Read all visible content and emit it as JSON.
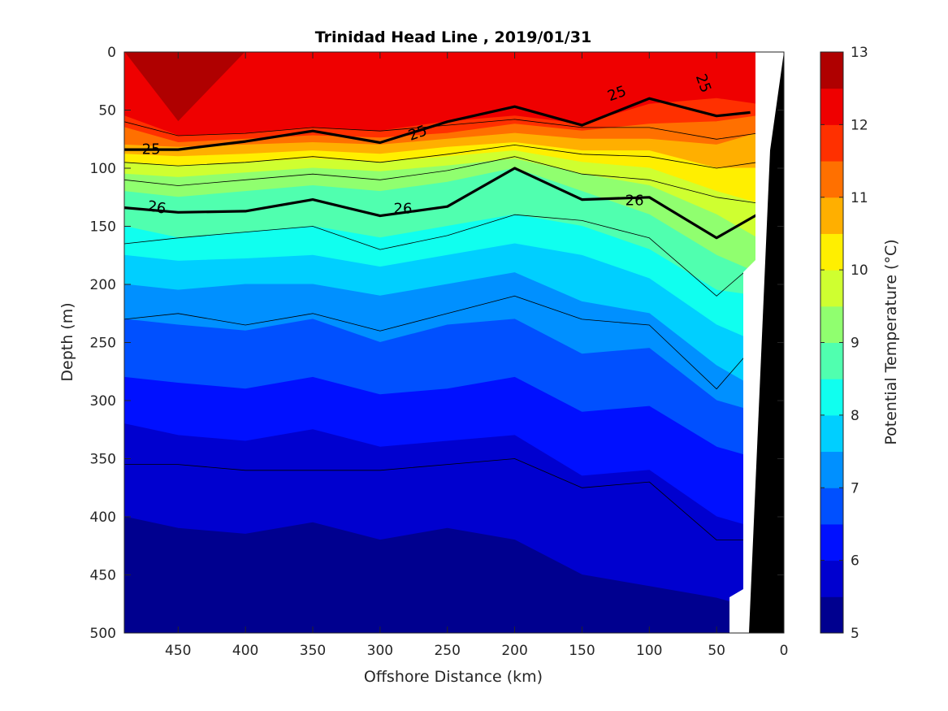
{
  "chart_data": {
    "type": "contour",
    "title": "Trinidad Head Line , 2019/01/31",
    "xlabel": "Offshore Distance (km)",
    "ylabel": "Depth (m)",
    "xlim": [
      490,
      0
    ],
    "ylim": [
      0,
      500
    ],
    "x_reversed": true,
    "y_reversed": true,
    "x_ticks": [
      450,
      400,
      350,
      300,
      250,
      200,
      150,
      100,
      50,
      0
    ],
    "y_ticks": [
      0,
      50,
      100,
      150,
      200,
      250,
      300,
      350,
      400,
      450,
      500
    ],
    "x_tick_labels": [
      "450",
      "400",
      "350",
      "300",
      "250",
      "200",
      "150",
      "100",
      "50",
      "0"
    ],
    "y_tick_labels": [
      "0",
      "50",
      "100",
      "150",
      "200",
      "250",
      "300",
      "350",
      "400",
      "450",
      "500"
    ],
    "colorbar": {
      "label": "Potential Temperature (°C)",
      "range": [
        5,
        13
      ],
      "ticks": [
        5,
        6,
        7,
        8,
        9,
        10,
        11,
        12,
        13
      ],
      "tick_labels": [
        "5",
        "6",
        "7",
        "8",
        "9",
        "10",
        "11",
        "12",
        "13"
      ],
      "levels": [
        5,
        5.5,
        6,
        6.5,
        7,
        7.5,
        8,
        8.5,
        9,
        9.5,
        10,
        10.5,
        11,
        11.5,
        12,
        12.5,
        13
      ],
      "colors": [
        "#00008f",
        "#0000cf",
        "#0010ff",
        "#0050ff",
        "#0090ff",
        "#00cfff",
        "#10ffef",
        "#50ffaf",
        "#90ff6f",
        "#cfff30",
        "#ffef00",
        "#ffaf00",
        "#ff7000",
        "#ff3000",
        "#ef0000",
        "#af0000"
      ]
    },
    "temperature_isotherm_depths": {
      "x_km": [
        490,
        450,
        400,
        350,
        300,
        250,
        200,
        150,
        100,
        50,
        20
      ],
      "t12_5": [
        0,
        60,
        0,
        0,
        0,
        0,
        0,
        0,
        0,
        0,
        0
      ],
      "t12": [
        55,
        72,
        70,
        65,
        68,
        60,
        55,
        62,
        45,
        40,
        45
      ],
      "t11_5": [
        65,
        78,
        75,
        72,
        74,
        70,
        62,
        68,
        62,
        60,
        55
      ],
      "t11": [
        80,
        82,
        80,
        78,
        80,
        75,
        70,
        75,
        75,
        80,
        70
      ],
      "t10_5": [
        88,
        90,
        88,
        85,
        88,
        82,
        78,
        85,
        85,
        100,
        100
      ],
      "t10": [
        95,
        98,
        95,
        92,
        95,
        90,
        85,
        95,
        100,
        120,
        130
      ],
      "t9_5": [
        105,
        108,
        104,
        100,
        103,
        98,
        92,
        105,
        115,
        140,
        160
      ],
      "t9": [
        120,
        125,
        120,
        115,
        120,
        112,
        100,
        120,
        140,
        175,
        190
      ],
      "t8_5": [
        150,
        160,
        155,
        150,
        160,
        150,
        140,
        150,
        170,
        205,
        210
      ],
      "t8": [
        175,
        180,
        178,
        175,
        185,
        175,
        165,
        175,
        195,
        235,
        250
      ],
      "t7_5": [
        200,
        205,
        200,
        200,
        210,
        200,
        190,
        215,
        225,
        270,
        290
      ],
      "t7": [
        230,
        235,
        240,
        230,
        250,
        235,
        230,
        260,
        255,
        300,
        310
      ],
      "t6_5": [
        280,
        285,
        290,
        280,
        295,
        290,
        280,
        310,
        305,
        340,
        350
      ],
      "t6": [
        320,
        330,
        335,
        325,
        340,
        335,
        330,
        365,
        360,
        400,
        410
      ],
      "t5_5": [
        400,
        410,
        415,
        405,
        420,
        410,
        420,
        450,
        460,
        470,
        480
      ]
    },
    "density_contours": [
      {
        "value": 25,
        "label": "25",
        "bold": true,
        "x_km": [
          490,
          450,
          400,
          350,
          300,
          250,
          200,
          150,
          100,
          50,
          25
        ],
        "depth_m": [
          84,
          84,
          77,
          68,
          78,
          60,
          47,
          63,
          40,
          55,
          52
        ]
      },
      {
        "value": 26,
        "label": "26",
        "bold": true,
        "x_km": [
          490,
          450,
          400,
          350,
          300,
          250,
          200,
          150,
          100,
          50,
          20
        ],
        "depth_m": [
          134,
          138,
          137,
          127,
          141,
          133,
          100,
          127,
          125,
          160,
          140
        ]
      }
    ],
    "thin_density_contours_depth_m": [
      [
        60,
        72,
        70,
        65,
        68,
        63,
        58,
        65,
        65,
        75,
        70
      ],
      [
        95,
        98,
        95,
        90,
        95,
        88,
        80,
        88,
        90,
        100,
        95
      ],
      [
        110,
        115,
        110,
        105,
        110,
        102,
        90,
        105,
        110,
        125,
        130
      ],
      [
        165,
        160,
        155,
        150,
        170,
        158,
        140,
        145,
        160,
        210,
        180
      ],
      [
        230,
        225,
        235,
        225,
        240,
        225,
        210,
        230,
        235,
        290,
        250
      ],
      [
        355,
        355,
        360,
        360,
        360,
        355,
        350,
        375,
        370,
        420,
        420
      ]
    ],
    "contour_labels": [
      {
        "text": "25",
        "x_km": 470,
        "depth_m": 84,
        "rotate": 0
      },
      {
        "text": "25",
        "x_km": 272,
        "depth_m": 70,
        "rotate": -20
      },
      {
        "text": "25",
        "x_km": 124,
        "depth_m": 36,
        "rotate": -20
      },
      {
        "text": "25",
        "x_km": 60,
        "depth_m": 27,
        "rotate": 70
      },
      {
        "text": "26",
        "x_km": 466,
        "depth_m": 134,
        "rotate": 10
      },
      {
        "text": "26",
        "x_km": 283,
        "depth_m": 135,
        "rotate": 0
      },
      {
        "text": "26",
        "x_km": 111,
        "depth_m": 128,
        "rotate": 0
      }
    ]
  }
}
